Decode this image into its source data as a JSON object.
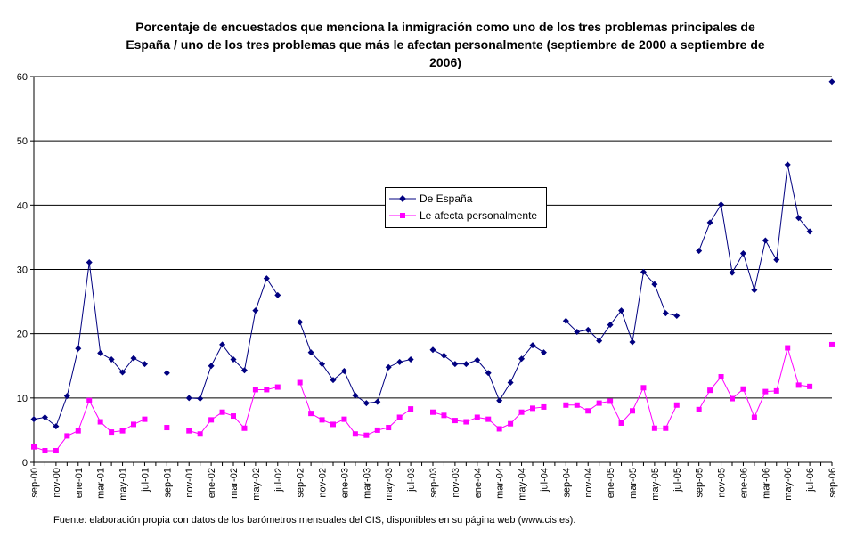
{
  "title_lines": [
    "Porcentaje de encuestados que menciona la inmigración como uno de los tres problemas principales de",
    "España / uno de los tres problemas que más le afectan personalmente (septiembre de 2000 a septiembre de",
    "2006)"
  ],
  "footnote": "Fuente: elaboración propia con datos de los barómetros mensuales del CIS, disponibles en su página web (www.cis.es).",
  "chart_data": {
    "type": "line",
    "title": "Porcentaje de encuestados que menciona la inmigración como uno de los tres problemas principales de España / uno de los tres problemas que más le afectan personalmente (septiembre de 2000 a septiembre de 2006)",
    "xlabel": "",
    "ylabel": "",
    "ylim": [
      0,
      60
    ],
    "yticks": [
      0,
      10,
      20,
      30,
      40,
      50,
      60
    ],
    "grid": "horizontal",
    "legend_position": "center",
    "categories": [
      "sep-00",
      "oct-00",
      "nov-00",
      "dic-00",
      "ene-01",
      "feb-01",
      "mar-01",
      "abr-01",
      "may-01",
      "jun-01",
      "jul-01",
      "ago-01",
      "sep-01",
      "oct-01",
      "nov-01",
      "dic-01",
      "ene-02",
      "feb-02",
      "mar-02",
      "abr-02",
      "may-02",
      "jun-02",
      "jul-02",
      "ago-02",
      "sep-02",
      "oct-02",
      "nov-02",
      "dic-02",
      "ene-03",
      "feb-03",
      "mar-03",
      "abr-03",
      "may-03",
      "jun-03",
      "jul-03",
      "ago-03",
      "sep-03",
      "oct-03",
      "nov-03",
      "dic-03",
      "ene-04",
      "feb-04",
      "mar-04",
      "abr-04",
      "may-04",
      "jun-04",
      "jul-04",
      "ago-04",
      "sep-04",
      "oct-04",
      "nov-04",
      "dic-04",
      "ene-05",
      "feb-05",
      "mar-05",
      "abr-05",
      "may-05",
      "jun-05",
      "jul-05",
      "ago-05",
      "sep-05",
      "oct-05",
      "nov-05",
      "dic-05",
      "ene-06",
      "feb-06",
      "mar-06",
      "abr-06",
      "may-06",
      "jun-06",
      "jul-06",
      "ago-06",
      "sep-06"
    ],
    "tick_labels": [
      "sep-00",
      "nov-00",
      "ene-01",
      "mar-01",
      "may-01",
      "jul-01",
      "sep-01",
      "nov-01",
      "ene-02",
      "mar-02",
      "may-02",
      "jul-02",
      "sep-02",
      "nov-02",
      "ene-03",
      "mar-03",
      "may-03",
      "jul-03",
      "sep-03",
      "nov-03",
      "ene-04",
      "mar-04",
      "may-04",
      "jul-04",
      "sep-04",
      "nov-04",
      "ene-05",
      "mar-05",
      "may-05",
      "jul-05",
      "sep-05",
      "nov-05",
      "ene-06",
      "mar-06",
      "may-06",
      "jul-06",
      "sep-06"
    ],
    "series": [
      {
        "name": "De España",
        "color": "#000080",
        "marker": "diamond",
        "values": [
          6.7,
          7.0,
          5.6,
          10.3,
          17.7,
          31.1,
          17.0,
          16.0,
          14.0,
          16.2,
          15.3,
          null,
          13.9,
          null,
          10.0,
          9.9,
          15.0,
          18.3,
          16.0,
          14.3,
          23.6,
          28.6,
          26.0,
          null,
          21.8,
          17.1,
          15.3,
          12.8,
          14.2,
          10.4,
          9.2,
          9.4,
          14.8,
          15.6,
          16.0,
          null,
          17.5,
          16.6,
          15.3,
          15.3,
          15.9,
          13.9,
          9.6,
          12.4,
          16.1,
          18.2,
          17.1,
          null,
          22.0,
          20.3,
          20.6,
          18.9,
          21.4,
          23.6,
          18.7,
          29.6,
          27.7,
          23.2,
          22.8,
          null,
          32.9,
          37.3,
          40.1,
          29.5,
          32.5,
          26.8,
          34.5,
          31.5,
          46.3,
          38.0,
          35.9,
          null,
          59.2
        ]
      },
      {
        "name": "Le afecta personalmente",
        "color": "#ff00ff",
        "marker": "square",
        "values": [
          2.4,
          1.8,
          1.8,
          4.1,
          4.9,
          9.6,
          6.3,
          4.7,
          4.9,
          5.9,
          6.7,
          null,
          5.4,
          null,
          4.9,
          4.4,
          6.6,
          7.8,
          7.2,
          5.3,
          11.3,
          11.3,
          11.7,
          null,
          12.4,
          7.6,
          6.6,
          5.9,
          6.7,
          4.4,
          4.2,
          5.0,
          5.4,
          7.0,
          8.3,
          null,
          7.8,
          7.3,
          6.5,
          6.3,
          7.0,
          6.7,
          5.2,
          6.0,
          7.8,
          8.4,
          8.6,
          null,
          8.9,
          8.9,
          8.0,
          9.2,
          9.5,
          6.1,
          8.0,
          11.6,
          5.3,
          5.3,
          8.9,
          null,
          8.2,
          11.2,
          13.3,
          9.9,
          11.4,
          7.0,
          11.0,
          11.1,
          17.8,
          12.0,
          11.8,
          null,
          18.3
        ]
      }
    ]
  }
}
